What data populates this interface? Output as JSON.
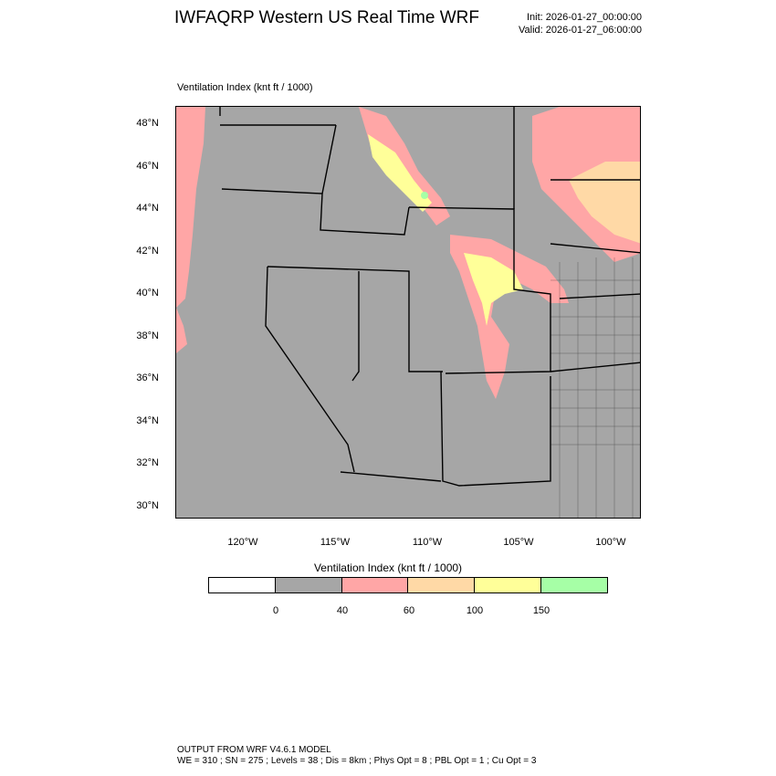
{
  "header": {
    "title": "IWFAQRP Western US Real Time WRF",
    "init": "Init: 2026-01-27_00:00:00",
    "valid": "Valid: 2026-01-27_06:00:00"
  },
  "map": {
    "subtitle": "Ventilation Index   (knt ft / 1000)",
    "base_color": "#a6a6a6",
    "lat_labels": [
      "48°N",
      "46°N",
      "44°N",
      "42°N",
      "40°N",
      "38°N",
      "36°N",
      "34°N",
      "32°N",
      "30°N"
    ],
    "lon_labels": [
      "120°W",
      "115°W",
      "110°W",
      "105°W",
      "100°W"
    ]
  },
  "colorbar": {
    "title": "Ventilation Index   (knt ft / 1000)",
    "colors": [
      "#ffffff",
      "#a6a6a6",
      "#ffa6a6",
      "#ffd9a6",
      "#ffff99",
      "#a6ffa6"
    ],
    "ticks": [
      "0",
      "40",
      "60",
      "100",
      "150"
    ]
  },
  "footer": {
    "line1": "OUTPUT FROM WRF V4.6.1 MODEL",
    "line2": "WE = 310 ; SN = 275 ; Levels = 38 ; Dis = 8km ; Phys Opt = 8 ; PBL Opt = 1 ; Cu Opt = 3"
  }
}
